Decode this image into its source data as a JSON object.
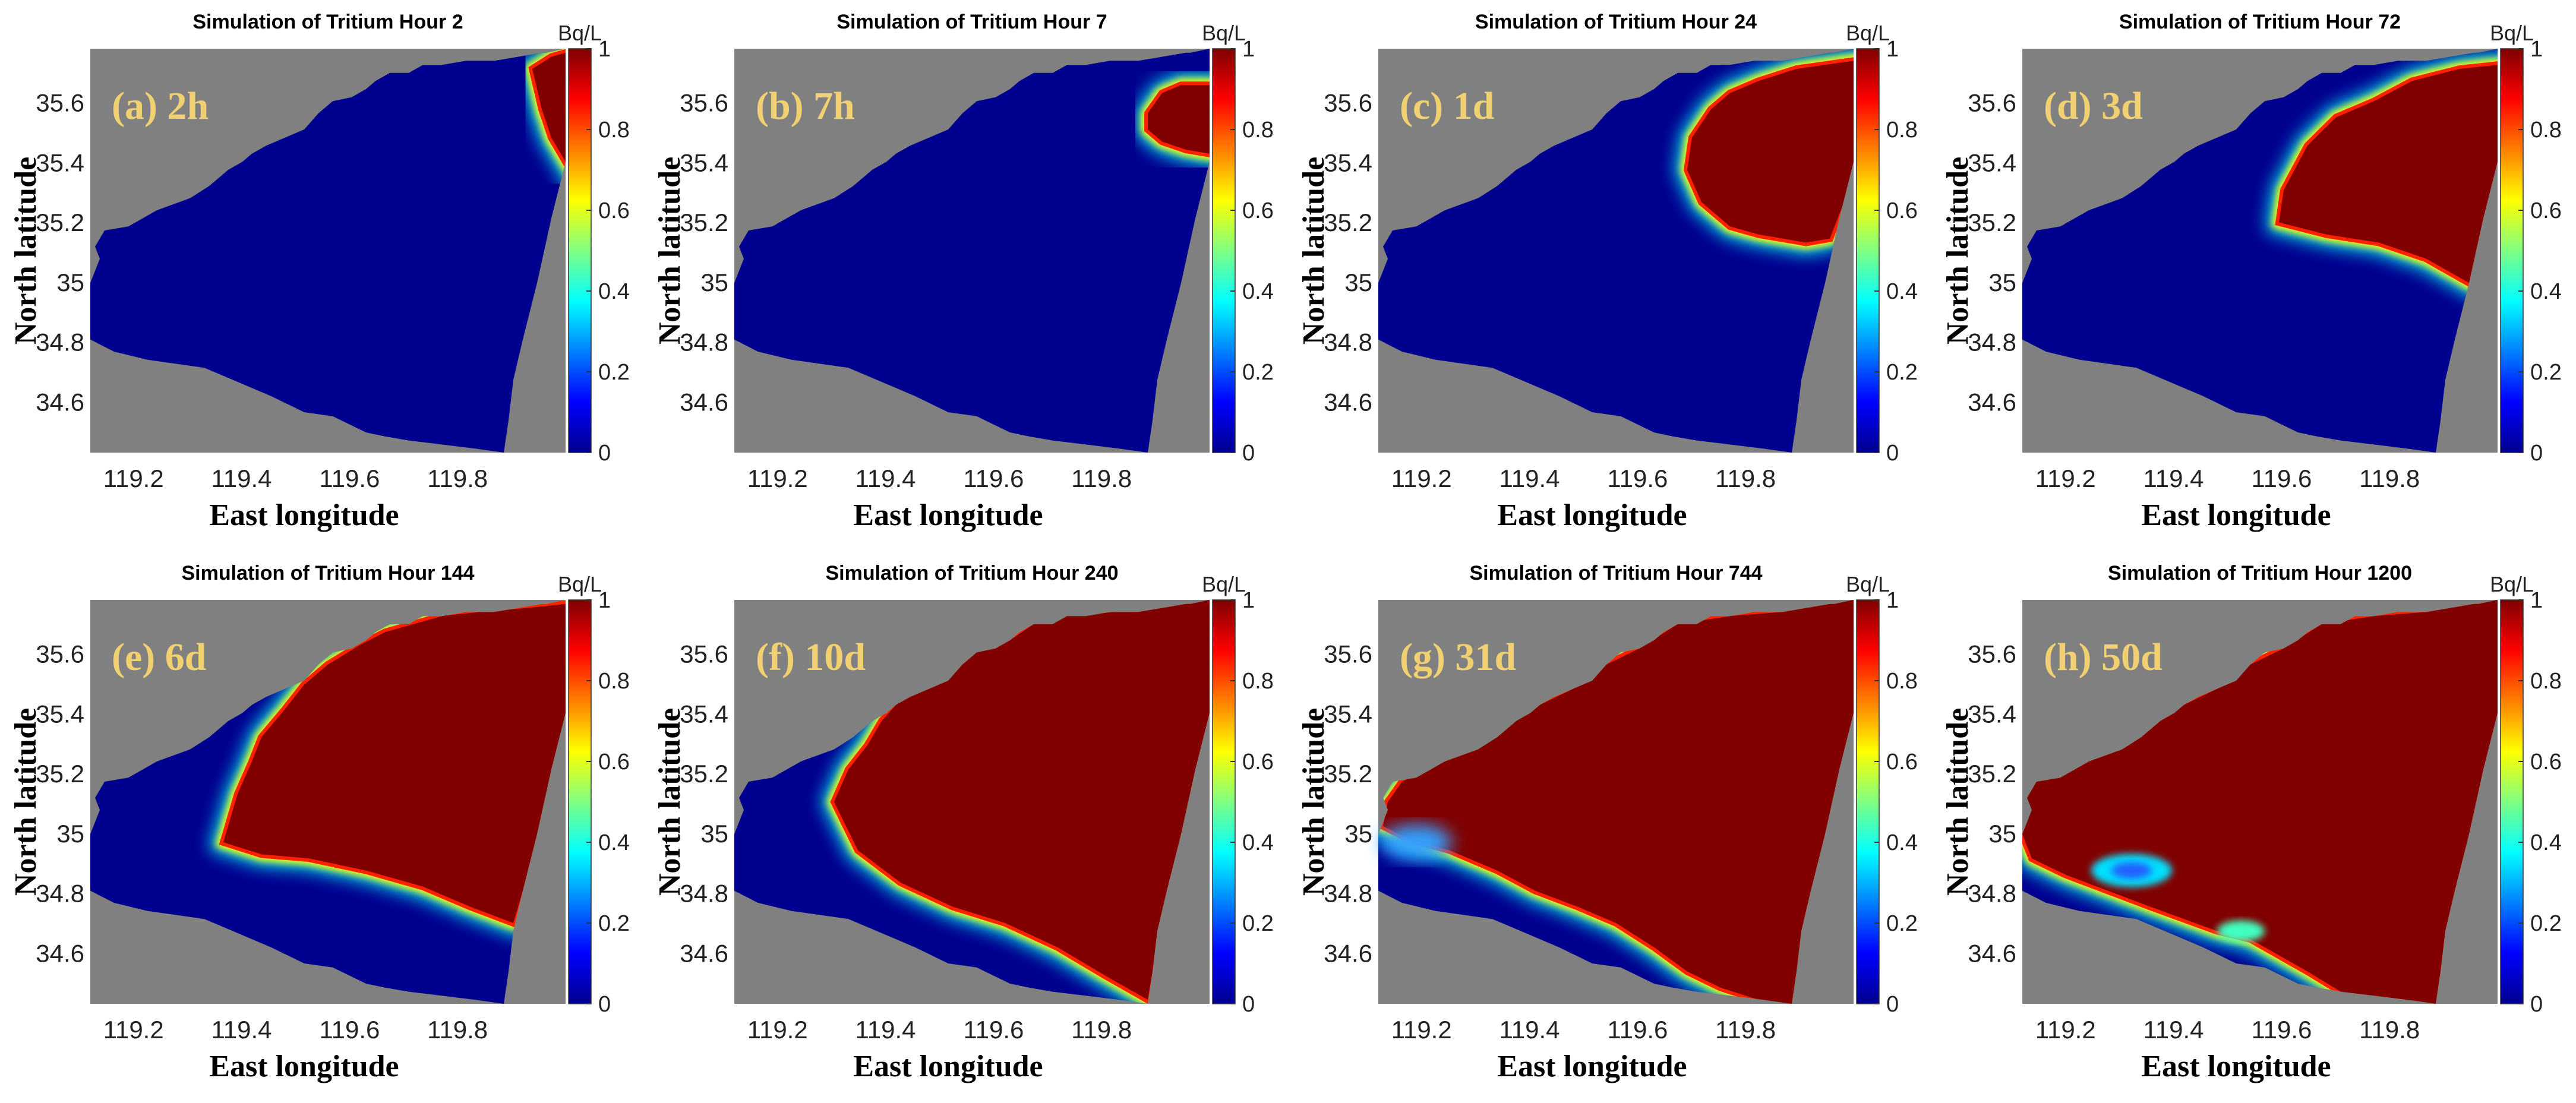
{
  "figure": {
    "x_ticks": [
      "119.2",
      "119.4",
      "119.6",
      "119.8"
    ],
    "y_ticks": [
      "35.6",
      "35.4",
      "35.2",
      "35",
      "34.8",
      "34.6"
    ],
    "xlabel": "East longitude",
    "ylabel": "North latitude",
    "colorbar_unit": "Bq/L",
    "colorbar_ticks": [
      "1",
      "0.8",
      "0.6",
      "0.4",
      "0.2",
      "0"
    ],
    "colors": {
      "land": "#808080",
      "sea_clean": "#00008f",
      "contaminated": "#800000",
      "label_text": "#f0d070"
    }
  },
  "chart_data": [
    {
      "type": "heatmap",
      "title": "Simulation of Tritium Hour 2",
      "label": "(a) 2h",
      "hour": 2,
      "xlim": [
        119.12,
        120.0
      ],
      "ylim": [
        34.43,
        35.78
      ],
      "zlim": [
        0,
        1
      ],
      "xlabel": "East longitude",
      "ylabel": "North latitude",
      "colorbar_label": "Bq/L",
      "colormap": "jet"
    },
    {
      "type": "heatmap",
      "title": "Simulation of Tritium Hour 7",
      "label": "(b) 7h",
      "hour": 7,
      "xlim": [
        119.12,
        120.0
      ],
      "ylim": [
        34.43,
        35.78
      ],
      "zlim": [
        0,
        1
      ],
      "xlabel": "East longitude",
      "ylabel": "North latitude",
      "colorbar_label": "Bq/L",
      "colormap": "jet"
    },
    {
      "type": "heatmap",
      "title": "Simulation of Tritium Hour 24",
      "label": "(c) 1d",
      "hour": 24,
      "xlim": [
        119.12,
        120.0
      ],
      "ylim": [
        34.43,
        35.78
      ],
      "zlim": [
        0,
        1
      ],
      "xlabel": "East longitude",
      "ylabel": "North latitude",
      "colorbar_label": "Bq/L",
      "colormap": "jet"
    },
    {
      "type": "heatmap",
      "title": "Simulation of Tritium Hour 72",
      "label": "(d) 3d",
      "hour": 72,
      "xlim": [
        119.12,
        120.0
      ],
      "ylim": [
        34.43,
        35.78
      ],
      "zlim": [
        0,
        1
      ],
      "xlabel": "East longitude",
      "ylabel": "North latitude",
      "colorbar_label": "Bq/L",
      "colormap": "jet"
    },
    {
      "type": "heatmap",
      "title": "Simulation of Tritium Hour 144",
      "label": "(e) 6d",
      "hour": 144,
      "xlim": [
        119.12,
        120.0
      ],
      "ylim": [
        34.43,
        35.78
      ],
      "zlim": [
        0,
        1
      ],
      "xlabel": "East longitude",
      "ylabel": "North latitude",
      "colorbar_label": "Bq/L",
      "colormap": "jet"
    },
    {
      "type": "heatmap",
      "title": "Simulation of Tritium Hour 240",
      "label": "(f) 10d",
      "hour": 240,
      "xlim": [
        119.12,
        120.0
      ],
      "ylim": [
        34.43,
        35.78
      ],
      "zlim": [
        0,
        1
      ],
      "xlabel": "East longitude",
      "ylabel": "North latitude",
      "colorbar_label": "Bq/L",
      "colormap": "jet"
    },
    {
      "type": "heatmap",
      "title": "Simulation of Tritium Hour 744",
      "label": "(g) 31d",
      "hour": 744,
      "xlim": [
        119.12,
        120.0
      ],
      "ylim": [
        34.43,
        35.78
      ],
      "zlim": [
        0,
        1
      ],
      "xlabel": "East longitude",
      "ylabel": "North latitude",
      "colorbar_label": "Bq/L",
      "colormap": "jet"
    },
    {
      "type": "heatmap",
      "title": "Simulation of Tritium Hour 1200",
      "label": "(h) 50d",
      "hour": 1200,
      "xlim": [
        119.12,
        120.0
      ],
      "ylim": [
        34.43,
        35.78
      ],
      "zlim": [
        0,
        1
      ],
      "xlabel": "East longitude",
      "ylabel": "North latitude",
      "colorbar_label": "Bq/L",
      "colormap": "jet"
    }
  ]
}
